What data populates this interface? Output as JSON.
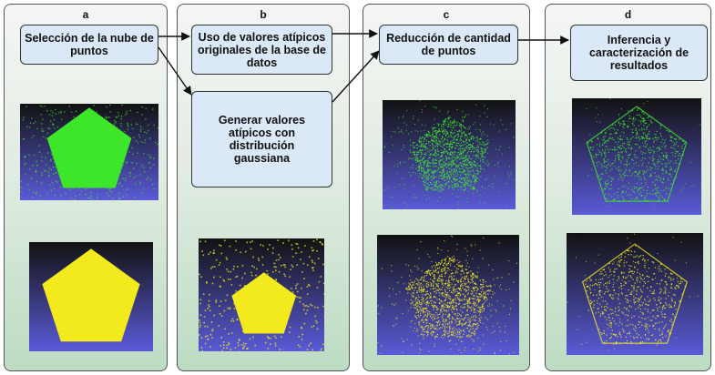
{
  "panels": [
    {
      "letter": "a"
    },
    {
      "letter": "b"
    },
    {
      "letter": "c"
    },
    {
      "letter": "d"
    }
  ],
  "boxes": {
    "seleccion": "Selección de la nube de puntos",
    "uso": "Uso de valores atípicos originales de la base de datos",
    "generar": "Generar valores atípicos con distribución gaussiana",
    "reduccion": "Reducción de cantidad de puntos",
    "inferencia": "Inferencia y caracterización de resultados"
  },
  "colors": {
    "green_points": "#3ee62a",
    "yellow_points": "#f2ea1c",
    "image_bg_top": "#121212",
    "image_bg_bottom": "#5a5ad8",
    "box_fill": "#dbe8f7"
  }
}
